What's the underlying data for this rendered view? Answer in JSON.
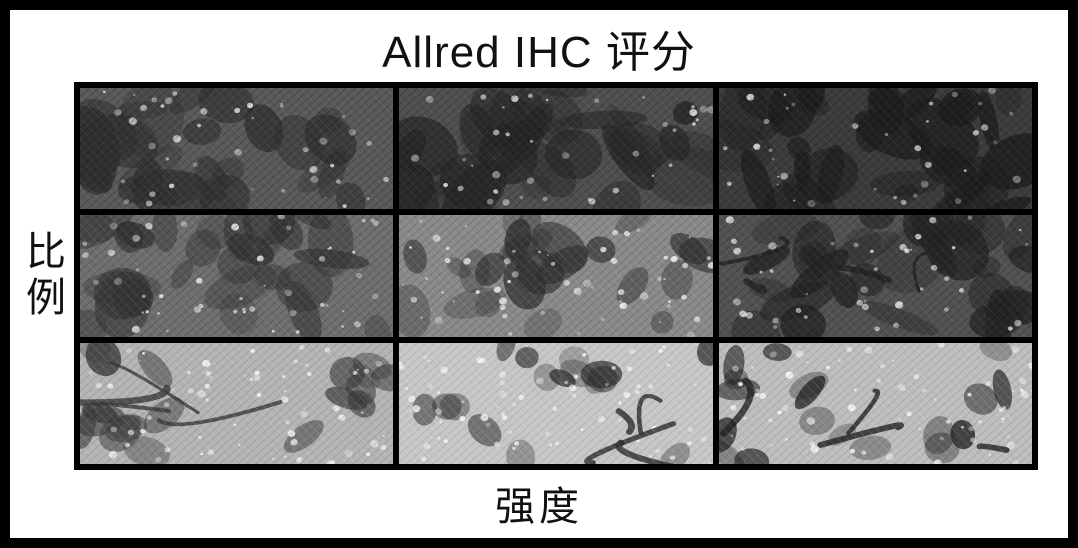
{
  "figure": {
    "type": "image-grid",
    "title": "Allred IHC 评分",
    "ylabel": "比例",
    "xlabel": "强度",
    "rows": 3,
    "cols": 3,
    "border_color": "#000000",
    "border_width_outer": 10,
    "border_width_grid": 6,
    "gap": 6,
    "title_fontsize": 44,
    "label_fontsize": 40,
    "text_color": "#111111",
    "background_color": "#ffffff",
    "cells": [
      {
        "r": 0,
        "c": 0,
        "bg": "#5a5a5a",
        "scribble": "#f5f5f5",
        "blotch": "#2f2f2f",
        "density": 0.82
      },
      {
        "r": 0,
        "c": 1,
        "bg": "#4f4f4f",
        "scribble": "#f7f7f7",
        "blotch": "#262626",
        "density": 0.86
      },
      {
        "r": 0,
        "c": 2,
        "bg": "#3c3c3c",
        "scribble": "#efefef",
        "blotch": "#1d1d1d",
        "density": 0.9
      },
      {
        "r": 1,
        "c": 0,
        "bg": "#6e6e6e",
        "scribble": "#f9f9f9",
        "blotch": "#333333",
        "density": 0.7
      },
      {
        "r": 1,
        "c": 1,
        "bg": "#8a8a8a",
        "scribble": "#ffffff",
        "blotch": "#303030",
        "density": 0.55
      },
      {
        "r": 1,
        "c": 2,
        "bg": "#525252",
        "scribble": "#f6f6f6",
        "blotch": "#232323",
        "density": 0.8
      },
      {
        "r": 2,
        "c": 0,
        "bg": "#b4b4b4",
        "scribble": "#ffffff",
        "blotch": "#3a3a3a",
        "density": 0.35
      },
      {
        "r": 2,
        "c": 1,
        "bg": "#c6c6c6",
        "scribble": "#ffffff",
        "blotch": "#2c2c2c",
        "density": 0.25
      },
      {
        "r": 2,
        "c": 2,
        "bg": "#bdbdbd",
        "scribble": "#ffffff",
        "blotch": "#222222",
        "density": 0.3
      }
    ]
  }
}
